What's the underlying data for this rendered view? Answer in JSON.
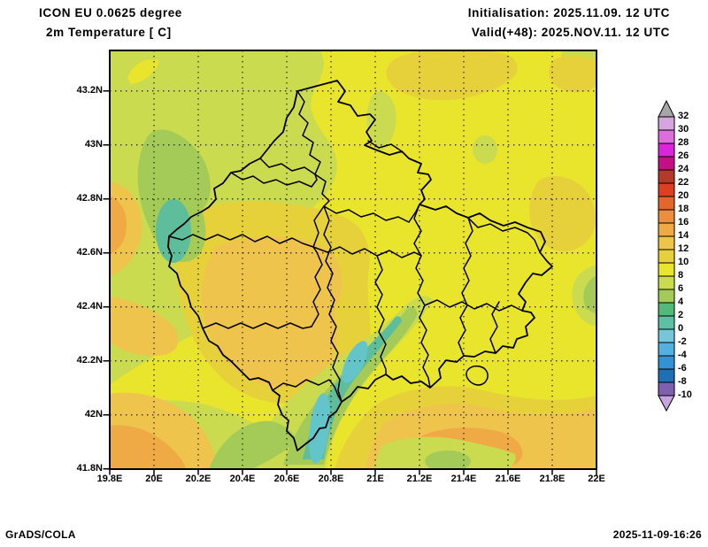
{
  "header": {
    "model_line": "ICON EU 0.0625 degree",
    "variable_line": "2m Temperature [ C]",
    "init_line": "Initialisation: 2025.11.09. 12 UTC",
    "valid_line": "Valid(+48): 2025.NOV.11. 12 UTC"
  },
  "footer": {
    "brand": "GrADS/COLA",
    "timestamp": "2025-11-09-16:26"
  },
  "axes": {
    "x_labels": [
      "19.8E",
      "20E",
      "20.2E",
      "20.4E",
      "20.6E",
      "20.8E",
      "21E",
      "21.2E",
      "21.4E",
      "21.6E",
      "21.8E",
      "22E"
    ],
    "y_labels": [
      "43.2N",
      "43N",
      "42.8N",
      "42.6N",
      "42.4N",
      "42.2N",
      "42N",
      "41.8N"
    ]
  },
  "colorbar": {
    "tick_labels": [
      "32",
      "30",
      "28",
      "26",
      "24",
      "22",
      "20",
      "18",
      "16",
      "14",
      "12",
      "10",
      "8",
      "6",
      "4",
      "2",
      "0",
      "-2",
      "-4",
      "-6",
      "-8",
      "-10"
    ],
    "band_colors": [
      "#d5a6de",
      "#dc6fdc",
      "#d926d9",
      "#c31185",
      "#b23a29",
      "#dd3f25",
      "#e3662f",
      "#eb8e40",
      "#f0aa45",
      "#eec44c",
      "#e7d13a",
      "#e9e42c",
      "#cbdb4f",
      "#a4cb58",
      "#53b878",
      "#5cc0a4",
      "#74c6d8",
      "#55b0e0",
      "#3392d4",
      "#1e6fb4",
      "#7f60ae"
    ],
    "above_max_color": "#a6a6a6",
    "below_min_color": "#c7a4dd",
    "units": "C"
  },
  "map_palette": {
    "base_yellow": "#e9e42c",
    "yellow_green": "#cbdb4f",
    "green": "#a4cb58",
    "teal_green": "#5ebd9a",
    "cyan": "#63c5ca",
    "gold": "#e7d13a",
    "amber": "#eec44c",
    "orange": "#f0aa45"
  }
}
